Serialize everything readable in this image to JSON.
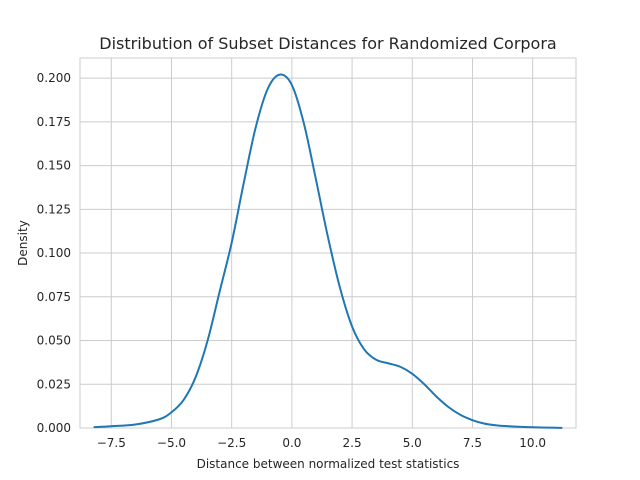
{
  "chart_data": {
    "type": "line",
    "title": "Distribution of Subset Distances for Randomized Corpora",
    "xlabel": "Distance between normalized test statistics",
    "ylabel": "Density",
    "xlim": [
      -8.8,
      11.8
    ],
    "ylim": [
      0,
      0.2115
    ],
    "xticks": [
      -7.5,
      -5.0,
      -2.5,
      0.0,
      2.5,
      5.0,
      7.5,
      10.0
    ],
    "xtick_labels": [
      "−7.5",
      "−5.0",
      "−2.5",
      "0.0",
      "2.5",
      "5.0",
      "7.5",
      "10.0"
    ],
    "yticks": [
      0.0,
      0.025,
      0.05,
      0.075,
      0.1,
      0.125,
      0.15,
      0.175,
      0.2
    ],
    "ytick_labels": [
      "0.000",
      "0.025",
      "0.050",
      "0.075",
      "0.100",
      "0.125",
      "0.150",
      "0.175",
      "0.200"
    ],
    "grid": true,
    "line_color": "#1f77b4",
    "series": [
      {
        "x": [
          -8.2,
          -7.5,
          -6.5,
          -5.5,
          -5.0,
          -4.5,
          -4.0,
          -3.5,
          -3.0,
          -2.5,
          -2.0,
          -1.5,
          -1.0,
          -0.5,
          0.0,
          0.5,
          1.0,
          1.5,
          2.0,
          2.5,
          3.0,
          3.5,
          4.0,
          4.5,
          5.0,
          5.5,
          6.0,
          6.5,
          7.0,
          7.5,
          8.0,
          8.5,
          9.0,
          10.0,
          11.2
        ],
        "y": [
          0.0005,
          0.001,
          0.002,
          0.005,
          0.009,
          0.016,
          0.029,
          0.05,
          0.078,
          0.106,
          0.14,
          0.172,
          0.194,
          0.202,
          0.196,
          0.174,
          0.142,
          0.109,
          0.08,
          0.058,
          0.045,
          0.039,
          0.037,
          0.035,
          0.031,
          0.025,
          0.018,
          0.012,
          0.0075,
          0.0045,
          0.0025,
          0.0015,
          0.001,
          0.0004,
          0.0001
        ]
      }
    ]
  }
}
